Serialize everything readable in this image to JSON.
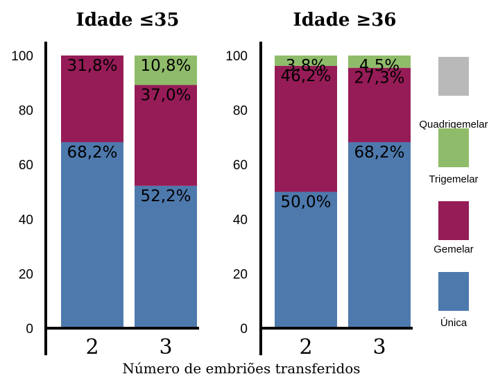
{
  "chart_data": {
    "type": "bar",
    "stacked": true,
    "xlabel": "Número de embriões transferidos",
    "ylim": [
      0,
      100
    ],
    "yticks": [
      0,
      20,
      40,
      60,
      80,
      100
    ],
    "legend_position": "right",
    "legend": [
      {
        "key": "quadrigemelar",
        "label": "Quadrigemelar",
        "color": "#b9b9b9"
      },
      {
        "key": "trigemelar",
        "label": "Trigemelar",
        "color": "#8fbc6a"
      },
      {
        "key": "gemelar",
        "label": "Gemelar",
        "color": "#961c57"
      },
      {
        "key": "unica",
        "label": "Única",
        "color": "#4e79ad"
      }
    ],
    "panels": [
      {
        "title": "Idade ≤35",
        "categories": [
          "2",
          "3"
        ],
        "series": [
          {
            "key": "unica",
            "values": [
              68.2,
              52.2
            ],
            "labels": [
              "68,2%",
              "52,2%"
            ]
          },
          {
            "key": "gemelar",
            "values": [
              31.8,
              37.0
            ],
            "labels": [
              "31,8%",
              "37,0%"
            ]
          },
          {
            "key": "trigemelar",
            "values": [
              0,
              10.8
            ],
            "labels": [
              "",
              "10,8%"
            ]
          },
          {
            "key": "quadrigemelar",
            "values": [
              0,
              0
            ],
            "labels": [
              "",
              ""
            ]
          }
        ]
      },
      {
        "title": "Idade ≥36",
        "categories": [
          "2",
          "3"
        ],
        "series": [
          {
            "key": "unica",
            "values": [
              50.0,
              68.2
            ],
            "labels": [
              "50,0%",
              "68,2%"
            ]
          },
          {
            "key": "gemelar",
            "values": [
              46.2,
              27.3
            ],
            "labels": [
              "46,2%",
              "27,3%"
            ]
          },
          {
            "key": "trigemelar",
            "values": [
              3.8,
              4.5
            ],
            "labels": [
              "3,8%",
              "4,5%"
            ]
          },
          {
            "key": "quadrigemelar",
            "values": [
              0,
              0
            ],
            "labels": [
              "",
              ""
            ]
          }
        ]
      }
    ]
  }
}
